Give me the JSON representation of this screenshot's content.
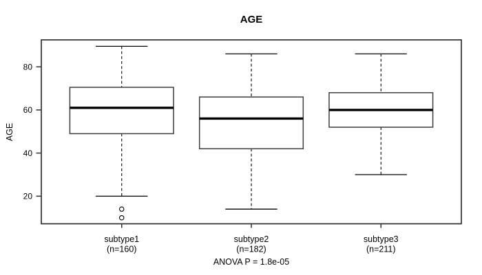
{
  "chart_data": {
    "type": "boxplot",
    "title": "AGE",
    "ylabel": "AGE",
    "xlabel": "",
    "ylim": [
      7.2,
      92.5
    ],
    "yticks": [
      20,
      40,
      60,
      80
    ],
    "grid": false,
    "legend": null,
    "categories": [
      "subtype1",
      "subtype2",
      "subtype3"
    ],
    "groups": [
      {
        "label": "subtype1",
        "count_label": "(n=160)",
        "n": 160,
        "whisker_low": 20,
        "q1": 49,
        "median": 61,
        "q3": 70.5,
        "whisker_high": 89.5,
        "outliers": [
          14,
          10
        ]
      },
      {
        "label": "subtype2",
        "count_label": "(n=182)",
        "n": 182,
        "whisker_low": 14,
        "q1": 42,
        "median": 56,
        "q3": 66,
        "whisker_high": 86,
        "outliers": []
      },
      {
        "label": "subtype3",
        "count_label": "(n=211)",
        "n": 211,
        "whisker_low": 30,
        "q1": 52,
        "median": 60,
        "q3": 68,
        "whisker_high": 86,
        "outliers": []
      }
    ],
    "annotation": "ANOVA P = 1.8e-05",
    "colors": {
      "line": "#000000",
      "frame": "#2f2f2f",
      "box_stroke": "#3d3d3d",
      "box_fill": "#ffffff",
      "text": "#000000",
      "background": "#ffffff"
    }
  }
}
